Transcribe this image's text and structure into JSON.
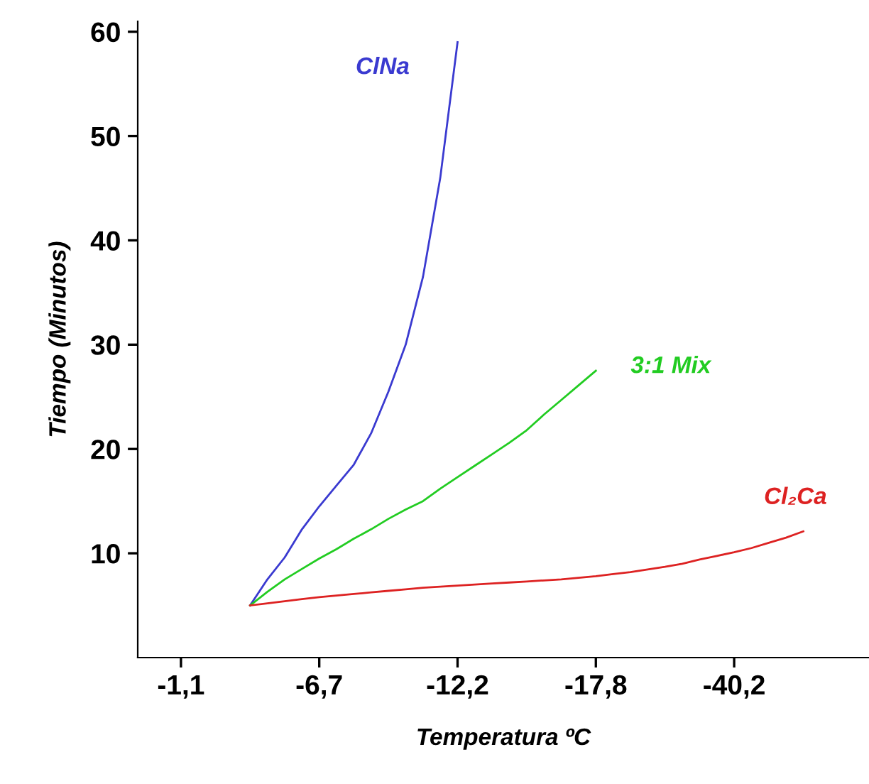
{
  "chart_data": {
    "type": "line",
    "xlabel": "Temperatura ºC",
    "ylabel": "Tiempo (Minutos)",
    "categories": [
      "-1,1",
      null,
      null,
      null,
      null,
      null,
      null,
      null,
      "-6,7",
      null,
      null,
      null,
      null,
      null,
      null,
      null,
      "-12,2",
      null,
      null,
      null,
      null,
      null,
      null,
      null,
      "-17,8",
      null,
      null,
      null,
      null,
      null,
      null,
      null,
      "-40,2",
      null,
      null,
      null,
      null
    ],
    "ylim": [
      0,
      61
    ],
    "yticks": [
      10,
      20,
      30,
      40,
      50,
      60
    ],
    "grid": false,
    "legend": false,
    "marker": "none",
    "line_style": "solid",
    "series": [
      {
        "name": "ClNa",
        "color": "#3a3ad0",
        "values": [
          null,
          null,
          null,
          null,
          5.0,
          7.5,
          9.6,
          12.3,
          14.5,
          16.5,
          18.5,
          21.5,
          25.5,
          30,
          36.5,
          46,
          59,
          null,
          null,
          null,
          null,
          null,
          null,
          null,
          null,
          null,
          null,
          null,
          null,
          null,
          null,
          null,
          null,
          null,
          null,
          null,
          null
        ]
      },
      {
        "name": "3:1 Mix",
        "color": "#22cc22",
        "values": [
          null,
          null,
          null,
          null,
          5.0,
          6.3,
          7.5,
          8.5,
          9.5,
          10.4,
          11.4,
          12.3,
          13.3,
          14.2,
          15,
          16.2,
          17.3,
          18.4,
          19.5,
          20.6,
          21.8,
          23.3,
          24.7,
          26.1,
          27.5,
          null,
          null,
          null,
          null,
          null,
          null,
          null,
          null,
          null,
          null,
          null,
          null
        ]
      },
      {
        "name": "Cl₂Ca",
        "color": "#dd2222",
        "values": [
          null,
          null,
          null,
          null,
          5.0,
          5.2,
          5.4,
          5.6,
          5.8,
          5.95,
          6.1,
          6.25,
          6.4,
          6.55,
          6.7,
          6.8,
          6.9,
          7.0,
          7.1,
          7.2,
          7.3,
          7.4,
          7.5,
          7.65,
          7.8,
          8.0,
          8.2,
          8.45,
          8.7,
          9.0,
          9.4,
          9.75,
          10.1,
          10.5,
          11.0,
          11.5,
          12.1
        ]
      }
    ]
  }
}
